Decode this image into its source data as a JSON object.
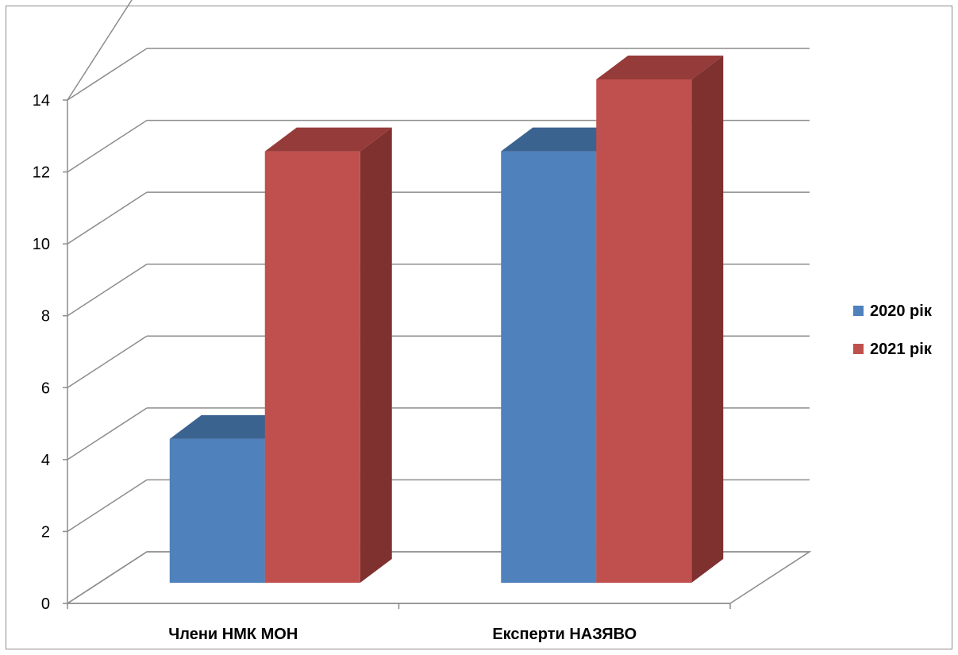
{
  "chart_data": {
    "type": "bar",
    "categories": [
      "Члени НМК МОН",
      "Експерти НАЗЯВО"
    ],
    "series": [
      {
        "name": "2020 рік",
        "values": [
          4,
          12
        ],
        "color": "#4F81BD",
        "top_color": "#3B6390",
        "side_color": "#3A5F8A"
      },
      {
        "name": "2021 рік",
        "values": [
          12,
          14
        ],
        "color": "#C0504D",
        "top_color": "#953B39",
        "side_color": "#7F3130"
      }
    ],
    "ylim": [
      0,
      14
    ],
    "yticks": [
      "0",
      "2",
      "4",
      "6",
      "8",
      "10",
      "12",
      "14"
    ],
    "grid": true,
    "legend_position": "right",
    "style": "3d-clustered-column"
  }
}
